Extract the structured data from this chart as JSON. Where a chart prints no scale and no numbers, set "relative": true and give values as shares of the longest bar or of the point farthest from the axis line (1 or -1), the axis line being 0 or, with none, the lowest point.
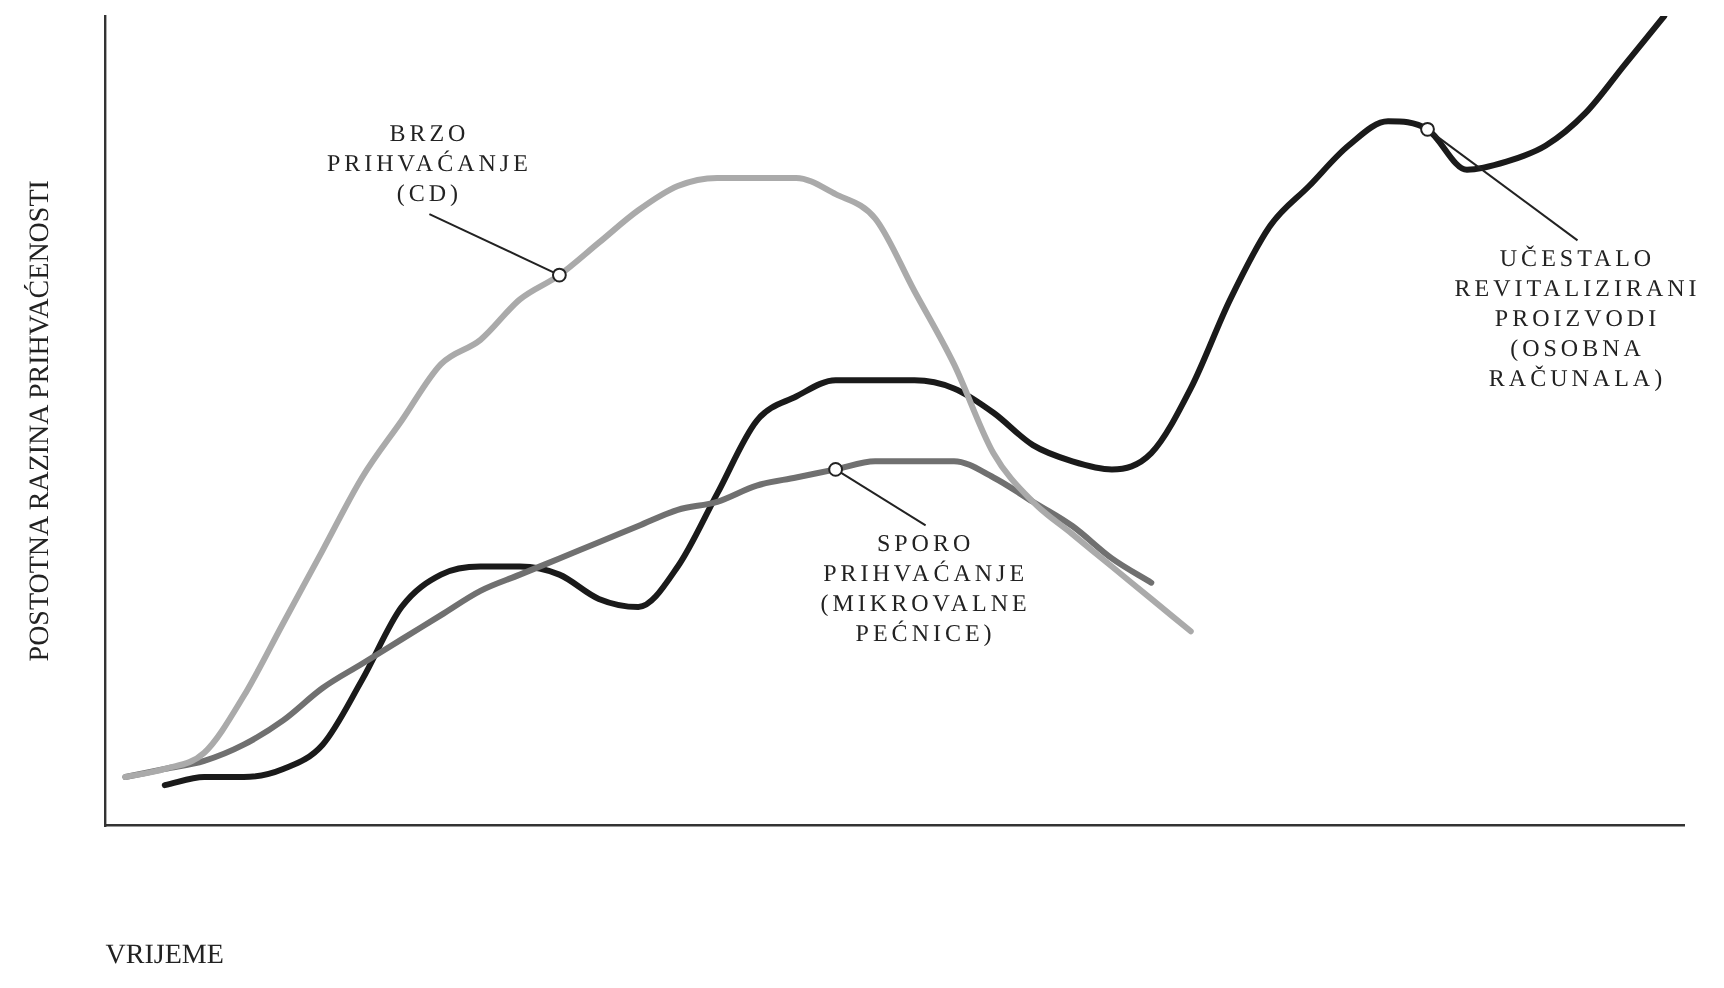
{
  "chart_data": {
    "type": "line",
    "relative": true,
    "xlabel": "VRIJEME",
    "ylabel": "POSTOTNA RAZINA PRIHVAĆENOSTI",
    "grid": false,
    "marker": "none",
    "line_style": "solid",
    "categories": [
      null,
      null,
      null,
      null,
      null,
      null,
      null,
      null,
      null,
      null,
      null,
      null,
      null,
      null,
      null,
      null,
      null,
      null,
      null,
      null,
      null,
      null,
      null,
      null,
      null,
      null,
      null,
      null,
      null,
      null,
      null,
      null,
      null,
      null,
      null,
      null,
      null,
      null,
      null,
      null
    ],
    "series": [
      {
        "name": "BRZO\nPRIHVAĆANJE\n(CD)",
        "color": "#aaaaaa",
        "values": [
          0.06,
          0.07,
          0.09,
          0.16,
          0.25,
          0.34,
          0.43,
          0.5,
          0.57,
          0.6,
          0.65,
          0.68,
          0.72,
          0.76,
          0.79,
          0.8,
          0.8,
          0.8,
          0.78,
          0.75,
          0.66,
          0.57,
          0.46,
          0.4,
          0.36,
          0.32,
          0.28,
          0.24,
          null,
          null,
          null,
          null,
          null,
          null,
          null,
          null,
          null,
          null,
          null,
          null
        ]
      },
      {
        "name": "SPORO\nPRIHVAĆANJE\n(MIKROVALNE\nPEĆNICE)",
        "color": "#707070",
        "values": [
          0.06,
          0.07,
          0.08,
          0.1,
          0.13,
          0.17,
          0.2,
          0.23,
          0.26,
          0.29,
          0.31,
          0.33,
          0.35,
          0.37,
          0.39,
          0.4,
          0.42,
          0.43,
          0.44,
          0.45,
          0.45,
          0.45,
          0.43,
          0.4,
          0.37,
          0.33,
          0.3,
          null,
          null,
          null,
          null,
          null,
          null,
          null,
          null,
          null,
          null,
          null,
          null,
          null
        ]
      },
      {
        "name": "UČESTALO\nREVITALIZIRANI\nPROIZVODI\n(OSOBNA\nRAČUNALA)",
        "color": "#1a1a1a",
        "values": [
          null,
          0.05,
          0.06,
          0.06,
          0.07,
          0.1,
          0.18,
          0.27,
          0.31,
          0.32,
          0.32,
          0.31,
          0.28,
          0.27,
          0.32,
          0.41,
          0.5,
          0.53,
          0.55,
          0.55,
          0.55,
          0.54,
          0.51,
          0.47,
          0.45,
          0.44,
          0.46,
          0.54,
          0.65,
          0.74,
          0.79,
          0.84,
          0.87,
          0.86,
          0.81,
          0.82,
          0.84,
          0.88,
          0.94,
          1.0
        ]
      }
    ]
  }
}
